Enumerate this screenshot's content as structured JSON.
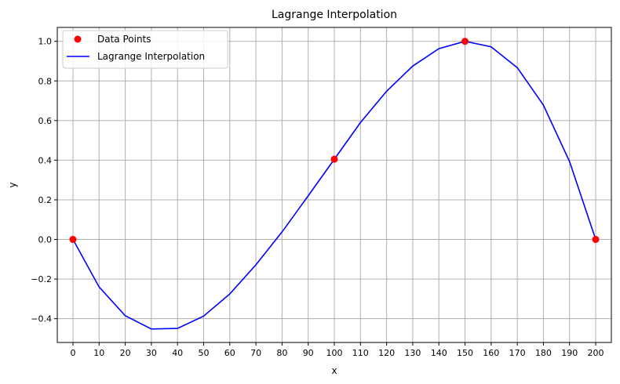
{
  "chart_data": {
    "type": "line",
    "title": "Lagrange Interpolation",
    "xlabel": "x",
    "ylabel": "y",
    "xlim": [
      -6,
      206
    ],
    "ylim": [
      -0.52,
      1.07
    ],
    "xticks": [
      0,
      10,
      20,
      30,
      40,
      50,
      60,
      70,
      80,
      90,
      100,
      110,
      120,
      130,
      140,
      150,
      160,
      170,
      180,
      190,
      200
    ],
    "yticks": [
      -0.4,
      -0.2,
      0.0,
      0.2,
      0.4,
      0.6,
      0.8,
      1.0
    ],
    "ytick_labels": [
      "−0.4",
      "−0.2",
      "0.0",
      "0.2",
      "0.4",
      "0.6",
      "0.8",
      "1.0"
    ],
    "grid": true,
    "legend": {
      "placement": "top-left",
      "entries": [
        "Data Points",
        "Lagrange Interpolation"
      ]
    },
    "series": [
      {
        "name": "Data Points",
        "kind": "scatter",
        "color": "#ff0000",
        "x": [
          0,
          100,
          150,
          200
        ],
        "y": [
          0.0,
          0.405,
          1.0,
          0.0
        ]
      },
      {
        "name": "Lagrange Interpolation",
        "kind": "line",
        "color": "#0000ff",
        "x": [
          0,
          10,
          20,
          30,
          40,
          50,
          60,
          70,
          80,
          90,
          100,
          110,
          120,
          130,
          140,
          150,
          160,
          170,
          180,
          190,
          200
        ],
        "y": [
          0.0,
          -0.24,
          -0.385,
          -0.452,
          -0.449,
          -0.387,
          -0.275,
          -0.128,
          0.038,
          0.22,
          0.405,
          0.59,
          0.748,
          0.875,
          0.963,
          1.0,
          0.972,
          0.867,
          0.678,
          0.393,
          0.0
        ]
      }
    ]
  }
}
